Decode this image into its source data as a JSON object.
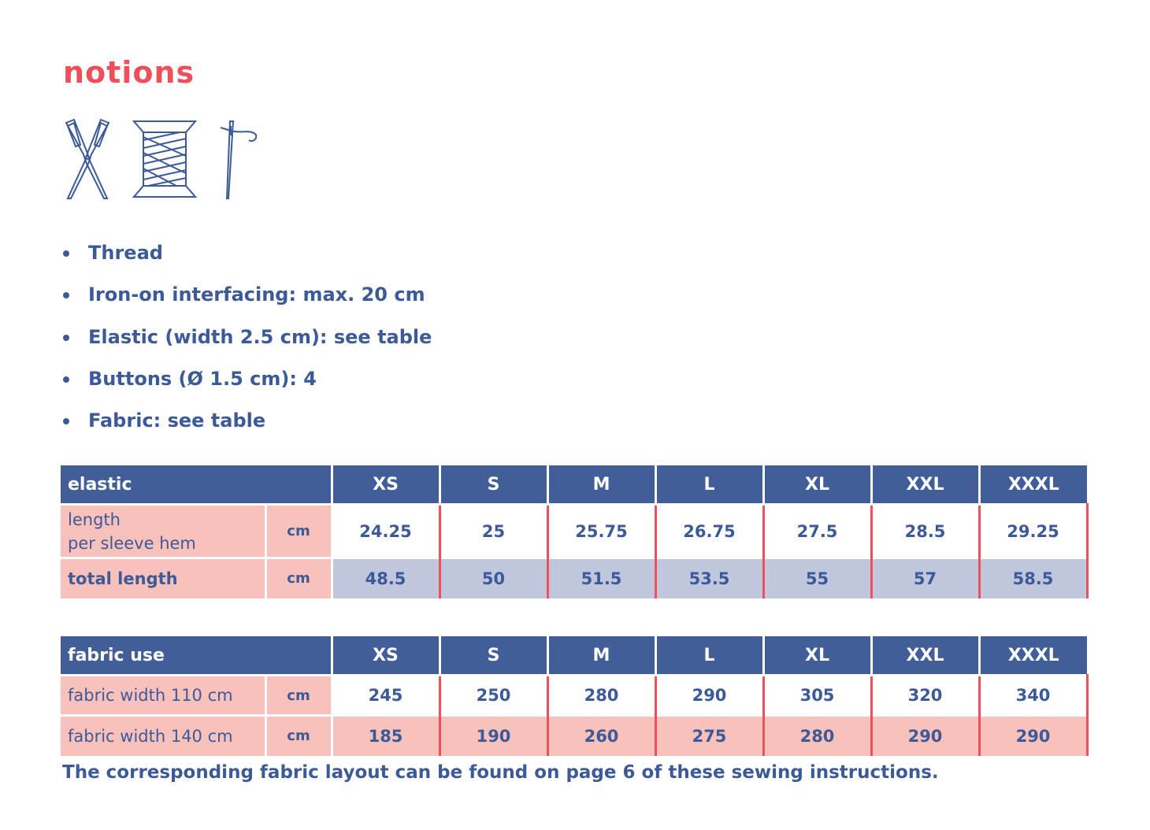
{
  "title": "notions",
  "icons": [
    "scissors-icon",
    "thread-spool-icon",
    "needle-icon"
  ],
  "colors": {
    "heading": "#ee4f5a",
    "text": "#3d5a98",
    "header_bg": "#425e99",
    "pink": "#f9c1bb",
    "lavender": "#bfc6de"
  },
  "notions": [
    "Thread",
    "Iron-on interfacing: max. 20 cm",
    "Elastic (width 2.5 cm): see table",
    "Buttons (Ø 1.5 cm): 4",
    "Fabric: see table"
  ],
  "sizes": [
    "XS",
    "S",
    "M",
    "L",
    "XL",
    "XXL",
    "XXXL"
  ],
  "elastic_table": {
    "header": "elastic",
    "rows": [
      {
        "label_line1": "length",
        "label_line2": "per sleeve hem",
        "unit": "cm",
        "values": [
          "24.25",
          "25",
          "25.75",
          "26.75",
          "27.5",
          "28.5",
          "29.25"
        ]
      },
      {
        "label": "total length",
        "unit": "cm",
        "values": [
          "48.5",
          "50",
          "51.5",
          "53.5",
          "55",
          "57",
          "58.5"
        ]
      }
    ]
  },
  "fabric_table": {
    "header": "fabric use",
    "rows": [
      {
        "label": "fabric width 110 cm",
        "unit": "cm",
        "values": [
          "245",
          "250",
          "280",
          "290",
          "305",
          "320",
          "340"
        ]
      },
      {
        "label": "fabric width 140 cm",
        "unit": "cm",
        "values": [
          "185",
          "190",
          "260",
          "275",
          "280",
          "290",
          "290"
        ]
      }
    ]
  },
  "footer": "The corresponding fabric layout can be found on page 6 of these sewing instructions."
}
